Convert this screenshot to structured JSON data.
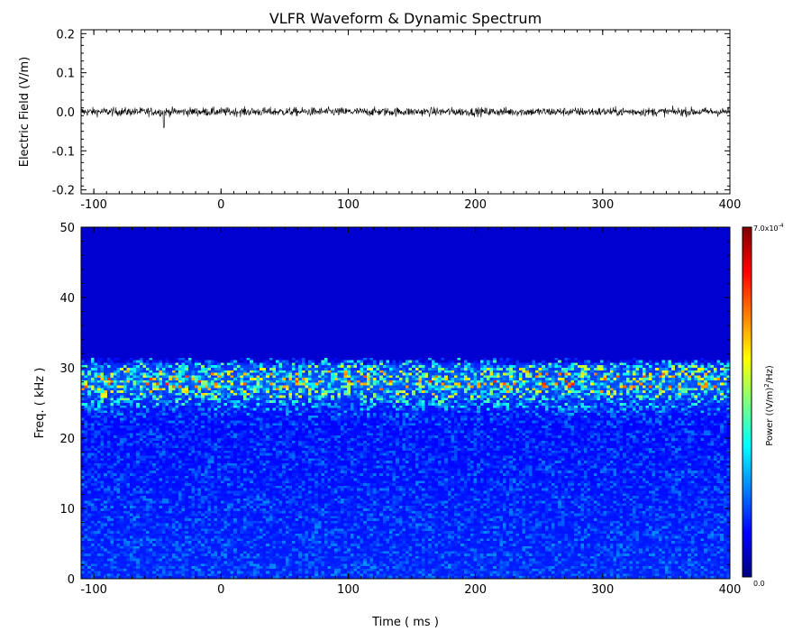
{
  "figure": {
    "title": "VLFR Waveform & Dynamic Spectrum"
  },
  "chart_data": [
    {
      "type": "line",
      "title": "VLFR Waveform & Dynamic Spectrum",
      "xlabel": "",
      "ylabel": "Electric Field  (V/m)",
      "xlim": [
        -110,
        400
      ],
      "ylim": [
        -0.21,
        0.21
      ],
      "x_ticks": [
        -100,
        0,
        100,
        200,
        300,
        400
      ],
      "y_ticks": [
        -0.2,
        -0.1,
        0.0,
        0.1,
        0.2
      ],
      "x_tick_labels": [
        "-100",
        "0",
        "100",
        "200",
        "300",
        "400"
      ],
      "y_tick_labels": [
        "-0.2",
        "-0.1",
        "0.0",
        "0.1",
        "0.2"
      ],
      "series": [
        {
          "description_level": "noise waveform centred on 0.0 V/m",
          "mean": 0.0,
          "typical_amplitude": 0.02,
          "peak_min": -0.04,
          "peak_max": 0.03,
          "color": "#000000"
        }
      ],
      "grid": false
    },
    {
      "type": "heatmap",
      "xlabel": "Time ( ms )",
      "ylabel": "Freq. ( kHz )",
      "xlim": [
        -110,
        400
      ],
      "ylim": [
        0,
        50
      ],
      "x_ticks": [
        -100,
        0,
        100,
        200,
        300,
        400
      ],
      "y_ticks": [
        0,
        10,
        20,
        30,
        40,
        50
      ],
      "x_tick_labels": [
        "-100",
        "0",
        "100",
        "200",
        "300",
        "400"
      ],
      "y_tick_labels": [
        "0",
        "10",
        "20",
        "30",
        "40",
        "50"
      ],
      "colorbar": {
        "label": "Power   ((V/m)²/Hz)",
        "label_base": "Power   ((V/m)",
        "label_sup": "2",
        "label_tail": "/Hz)",
        "min": 0.0,
        "max": 0.0007,
        "min_label": "0.0",
        "max_label_mantissa": "7.0x10",
        "max_label_exponent": "-4",
        "colormap": "jet"
      },
      "content": {
        "cutoff_frequency_khz": 31,
        "above_cutoff_power": 0.0,
        "band_peak_frequency_khz": 28,
        "band_peak_power_fraction": 0.45,
        "low_frequency_power_fraction": 0.15
      }
    }
  ]
}
